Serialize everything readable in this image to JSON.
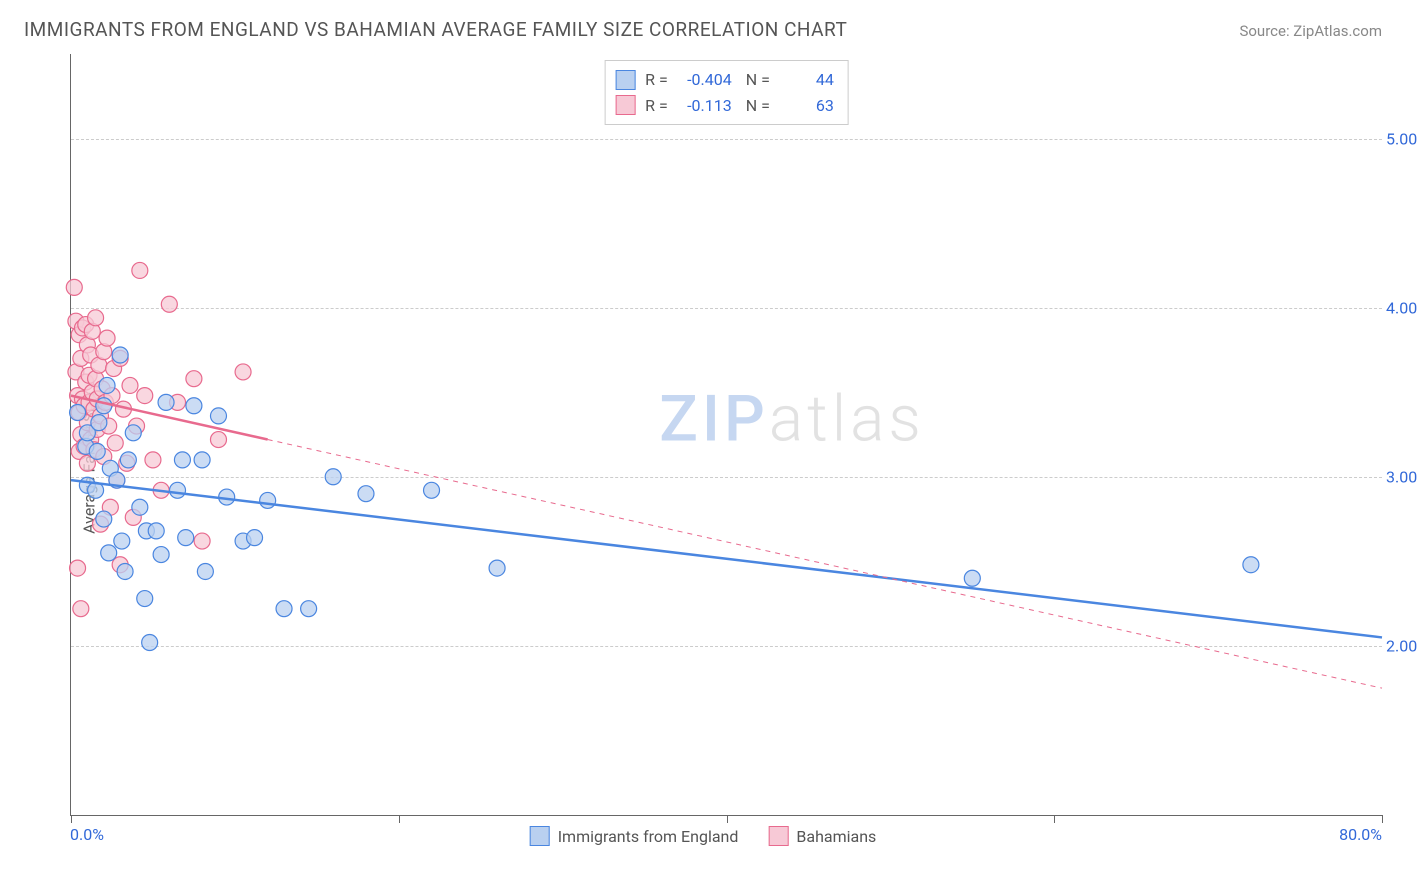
{
  "header": {
    "title": "IMMIGRANTS FROM ENGLAND VS BAHAMIAN AVERAGE FAMILY SIZE CORRELATION CHART",
    "source": "Source: ZipAtlas.com"
  },
  "watermark": {
    "part1": "ZIP",
    "part2": "atlas"
  },
  "chart": {
    "type": "scatter",
    "ylabel": "Average Family Size",
    "xlim": [
      0,
      80
    ],
    "ylim": [
      1.0,
      5.5
    ],
    "y_ticks": [
      2.0,
      3.0,
      4.0,
      5.0
    ],
    "y_tick_labels": [
      "2.00",
      "3.00",
      "4.00",
      "5.00"
    ],
    "x_tick_positions": [
      0,
      20,
      40,
      60,
      80
    ],
    "x_min_label": "0.0%",
    "x_max_label": "80.0%",
    "grid_color": "#cccccc",
    "background_color": "#ffffff",
    "axis_color": "#666666",
    "tick_label_color": "#3168d8",
    "marker_radius": 8,
    "marker_stroke_width": 1.2,
    "trend_line_width": 2.5,
    "series": [
      {
        "name": "Immigrants from England",
        "R": "-0.404",
        "N": "44",
        "fill": "#b9d0f0",
        "stroke": "#4a86e0",
        "trend_solid": true,
        "trend": {
          "x1": 0,
          "y1": 2.98,
          "x2": 80,
          "y2": 2.05
        },
        "points": [
          [
            0.4,
            3.38
          ],
          [
            0.9,
            3.18
          ],
          [
            1.0,
            2.95
          ],
          [
            1.0,
            3.26
          ],
          [
            1.5,
            2.92
          ],
          [
            1.6,
            3.15
          ],
          [
            1.7,
            3.32
          ],
          [
            2.0,
            3.42
          ],
          [
            2.0,
            2.75
          ],
          [
            2.2,
            3.54
          ],
          [
            2.3,
            2.55
          ],
          [
            2.4,
            3.05
          ],
          [
            2.8,
            2.98
          ],
          [
            3.0,
            3.72
          ],
          [
            3.1,
            2.62
          ],
          [
            3.3,
            2.44
          ],
          [
            3.5,
            3.1
          ],
          [
            3.8,
            3.26
          ],
          [
            4.2,
            2.82
          ],
          [
            4.5,
            2.28
          ],
          [
            4.6,
            2.68
          ],
          [
            4.8,
            2.02
          ],
          [
            5.2,
            2.68
          ],
          [
            5.5,
            2.54
          ],
          [
            5.8,
            3.44
          ],
          [
            6.5,
            2.92
          ],
          [
            6.8,
            3.1
          ],
          [
            7.0,
            2.64
          ],
          [
            7.5,
            3.42
          ],
          [
            8.0,
            3.1
          ],
          [
            8.2,
            2.44
          ],
          [
            9.0,
            3.36
          ],
          [
            9.5,
            2.88
          ],
          [
            10.5,
            2.62
          ],
          [
            11.2,
            2.64
          ],
          [
            12.0,
            2.86
          ],
          [
            13.0,
            2.22
          ],
          [
            14.5,
            2.22
          ],
          [
            16.0,
            3.0
          ],
          [
            18.0,
            2.9
          ],
          [
            22.0,
            2.92
          ],
          [
            26.0,
            2.46
          ],
          [
            55.0,
            2.4
          ],
          [
            72.0,
            2.48
          ]
        ]
      },
      {
        "name": "Bahamians",
        "R": "-0.113",
        "N": "63",
        "fill": "#f7c9d6",
        "stroke": "#e86a8e",
        "trend_solid": false,
        "trend_solid_until_x": 12,
        "trend": {
          "x1": 0,
          "y1": 3.48,
          "x2": 80,
          "y2": 1.75
        },
        "points": [
          [
            0.2,
            4.12
          ],
          [
            0.3,
            3.92
          ],
          [
            0.3,
            3.62
          ],
          [
            0.4,
            3.48
          ],
          [
            0.4,
            2.46
          ],
          [
            0.5,
            3.84
          ],
          [
            0.5,
            3.38
          ],
          [
            0.5,
            3.15
          ],
          [
            0.6,
            3.7
          ],
          [
            0.6,
            3.25
          ],
          [
            0.6,
            2.22
          ],
          [
            0.7,
            3.88
          ],
          [
            0.7,
            3.46
          ],
          [
            0.8,
            3.42
          ],
          [
            0.8,
            3.18
          ],
          [
            0.9,
            3.9
          ],
          [
            0.9,
            3.56
          ],
          [
            1.0,
            3.78
          ],
          [
            1.0,
            3.32
          ],
          [
            1.0,
            3.08
          ],
          [
            1.1,
            3.6
          ],
          [
            1.1,
            3.44
          ],
          [
            1.2,
            3.72
          ],
          [
            1.2,
            3.22
          ],
          [
            1.3,
            3.5
          ],
          [
            1.3,
            3.86
          ],
          [
            1.4,
            3.4
          ],
          [
            1.4,
            3.16
          ],
          [
            1.5,
            3.94
          ],
          [
            1.5,
            3.58
          ],
          [
            1.6,
            3.28
          ],
          [
            1.6,
            3.46
          ],
          [
            1.7,
            3.66
          ],
          [
            1.8,
            3.36
          ],
          [
            1.8,
            2.72
          ],
          [
            1.9,
            3.52
          ],
          [
            2.0,
            3.74
          ],
          [
            2.0,
            3.12
          ],
          [
            2.1,
            3.44
          ],
          [
            2.2,
            3.82
          ],
          [
            2.3,
            3.3
          ],
          [
            2.4,
            2.82
          ],
          [
            2.5,
            3.48
          ],
          [
            2.6,
            3.64
          ],
          [
            2.7,
            3.2
          ],
          [
            2.8,
            2.98
          ],
          [
            3.0,
            3.7
          ],
          [
            3.0,
            2.48
          ],
          [
            3.2,
            3.4
          ],
          [
            3.4,
            3.08
          ],
          [
            3.6,
            3.54
          ],
          [
            3.8,
            2.76
          ],
          [
            4.0,
            3.3
          ],
          [
            4.2,
            4.22
          ],
          [
            4.5,
            3.48
          ],
          [
            5.0,
            3.1
          ],
          [
            5.5,
            2.92
          ],
          [
            6.0,
            4.02
          ],
          [
            6.5,
            3.44
          ],
          [
            7.5,
            3.58
          ],
          [
            8.0,
            2.62
          ],
          [
            9.0,
            3.22
          ],
          [
            10.5,
            3.62
          ]
        ]
      }
    ]
  },
  "legend_bottom": {
    "series1_label": "Immigrants from England",
    "series2_label": "Bahamians"
  }
}
